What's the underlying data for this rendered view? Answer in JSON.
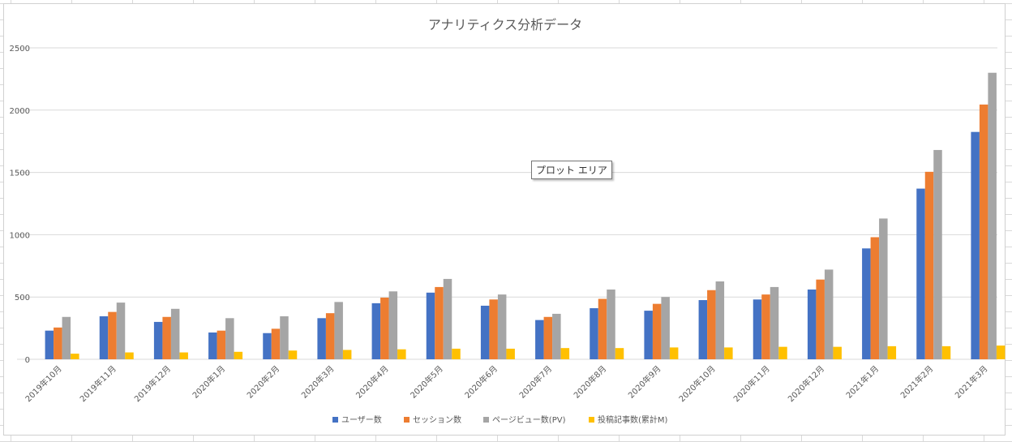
{
  "tooltip": {
    "label": "プロット エリア"
  },
  "colors": {
    "series": [
      "#4472c4",
      "#ed7d31",
      "#a5a5a5",
      "#ffc000"
    ],
    "grid": "#d9d9d9",
    "text": "#595959"
  },
  "chart_data": {
    "type": "bar",
    "title": "アナリティクス分析データ",
    "xlabel": "",
    "ylabel": "",
    "ylim": [
      0,
      2500
    ],
    "yticks": [
      0,
      500,
      1000,
      1500,
      2000,
      2500
    ],
    "grid": true,
    "legend_position": "bottom",
    "categories": [
      "2019年10月",
      "2019年11月",
      "2019年12月",
      "2020年1月",
      "2020年2月",
      "2020年3月",
      "2020年4月",
      "2020年5月",
      "2020年6月",
      "2020年7月",
      "2020年8月",
      "2020年9月",
      "2020年10月",
      "2020年11月",
      "2020年12月",
      "2021年1月",
      "2021年2月",
      "2021年3月"
    ],
    "series": [
      {
        "name": "ユーザー数",
        "values": [
          230,
          345,
          300,
          215,
          210,
          330,
          450,
          535,
          430,
          315,
          410,
          390,
          475,
          480,
          560,
          890,
          1370,
          1825
        ]
      },
      {
        "name": "セッション数",
        "values": [
          255,
          380,
          340,
          230,
          245,
          370,
          495,
          580,
          480,
          340,
          485,
          445,
          555,
          520,
          640,
          980,
          1505,
          2045
        ]
      },
      {
        "name": "ページビュー数(PV)",
        "values": [
          340,
          455,
          405,
          330,
          345,
          460,
          545,
          645,
          520,
          365,
          560,
          500,
          625,
          580,
          720,
          1130,
          1680,
          2300
        ]
      },
      {
        "name": "投稿記事数(累計M)",
        "values": [
          45,
          55,
          55,
          60,
          70,
          75,
          80,
          85,
          85,
          90,
          90,
          95,
          95,
          100,
          100,
          105,
          105,
          110
        ]
      }
    ]
  }
}
